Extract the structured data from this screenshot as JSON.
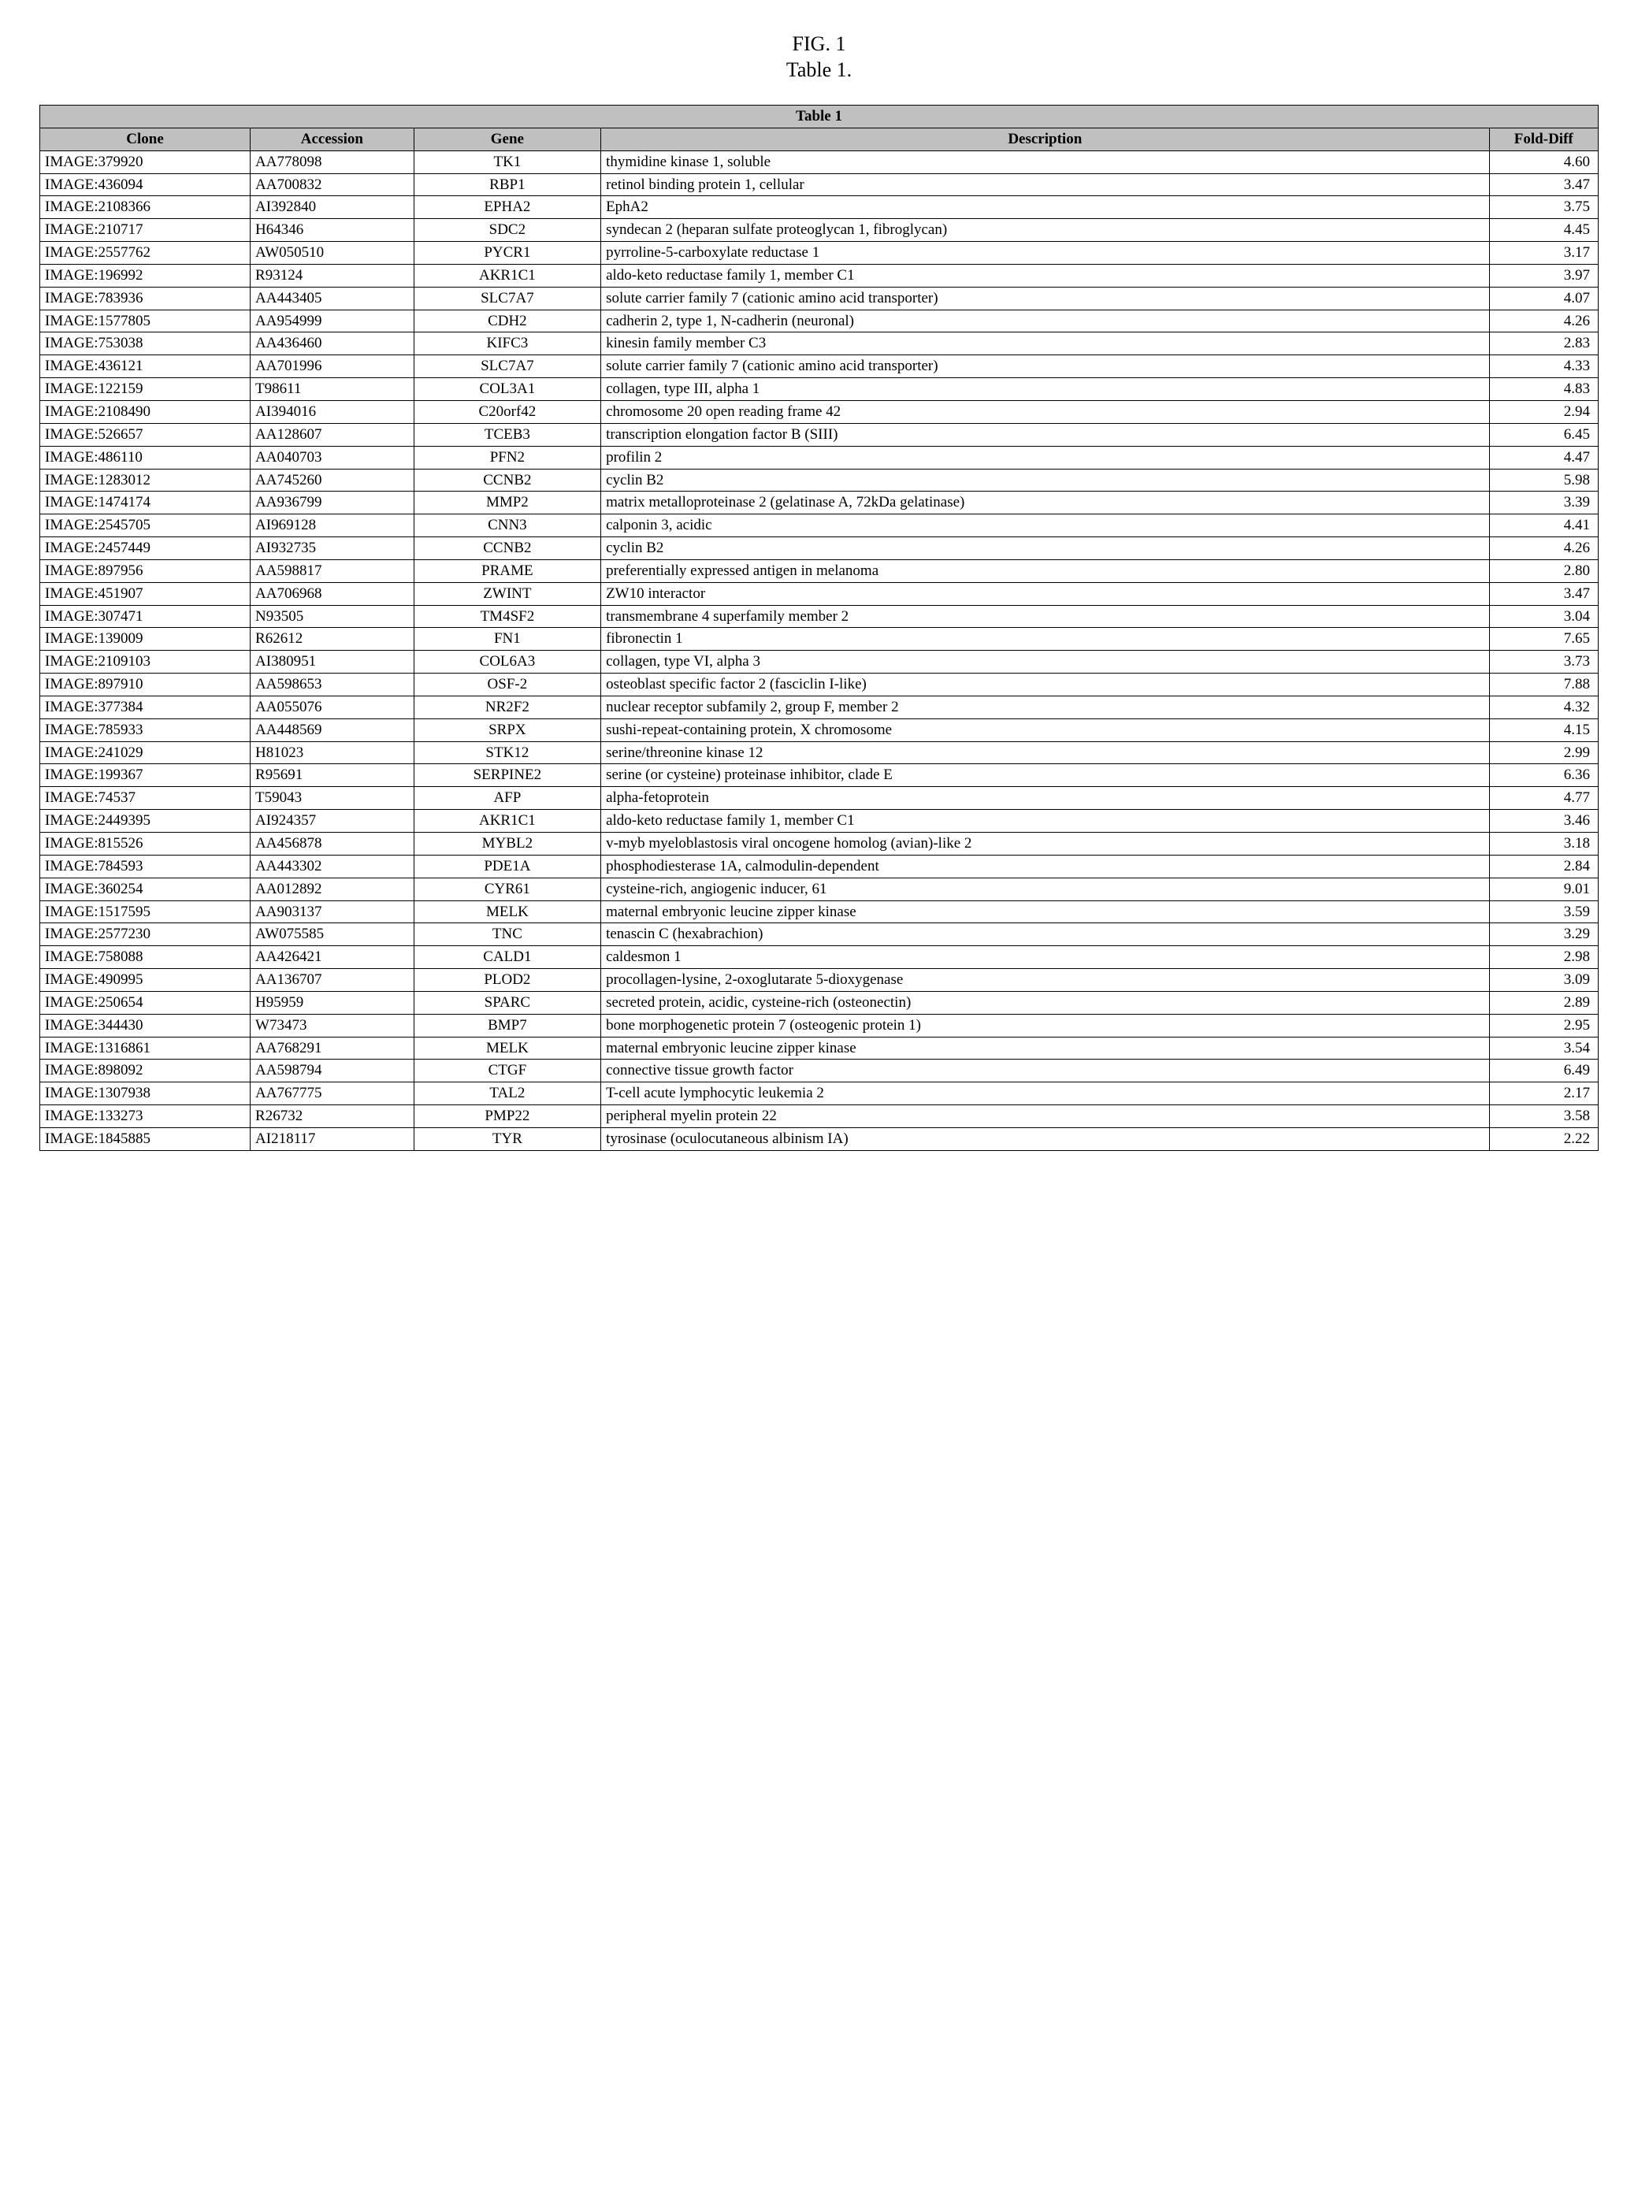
{
  "figure": {
    "label_line1": "FIG. 1",
    "label_line2": "Table 1."
  },
  "table": {
    "title": "Table 1",
    "columns": {
      "clone": "Clone",
      "accession": "Accession",
      "gene": "Gene",
      "description": "Description",
      "fold": "Fold-Diff"
    },
    "rows": [
      {
        "clone": "IMAGE:379920",
        "accession": "AA778098",
        "gene": "TK1",
        "description": "thymidine kinase 1, soluble",
        "fold": "4.60"
      },
      {
        "clone": "IMAGE:436094",
        "accession": "AA700832",
        "gene": "RBP1",
        "description": "retinol binding protein 1, cellular",
        "fold": "3.47"
      },
      {
        "clone": "IMAGE:2108366",
        "accession": "AI392840",
        "gene": "EPHA2",
        "description": "EphA2",
        "fold": "3.75"
      },
      {
        "clone": "IMAGE:210717",
        "accession": "H64346",
        "gene": "SDC2",
        "description": "syndecan 2 (heparan sulfate proteoglycan 1, fibroglycan)",
        "fold": "4.45"
      },
      {
        "clone": "IMAGE:2557762",
        "accession": "AW050510",
        "gene": "PYCR1",
        "description": "pyrroline-5-carboxylate reductase 1",
        "fold": "3.17"
      },
      {
        "clone": "IMAGE:196992",
        "accession": "R93124",
        "gene": "AKR1C1",
        "description": "aldo-keto reductase family 1, member C1",
        "fold": "3.97"
      },
      {
        "clone": "IMAGE:783936",
        "accession": "AA443405",
        "gene": "SLC7A7",
        "description": "solute carrier family 7 (cationic amino acid transporter)",
        "fold": "4.07"
      },
      {
        "clone": "IMAGE:1577805",
        "accession": "AA954999",
        "gene": "CDH2",
        "description": "cadherin 2, type 1, N-cadherin (neuronal)",
        "fold": "4.26"
      },
      {
        "clone": "IMAGE:753038",
        "accession": "AA436460",
        "gene": "KIFC3",
        "description": "kinesin family member C3",
        "fold": "2.83"
      },
      {
        "clone": "IMAGE:436121",
        "accession": "AA701996",
        "gene": "SLC7A7",
        "description": "solute carrier family 7 (cationic amino acid transporter)",
        "fold": "4.33"
      },
      {
        "clone": "IMAGE:122159",
        "accession": "T98611",
        "gene": "COL3A1",
        "description": "collagen, type III, alpha 1",
        "fold": "4.83"
      },
      {
        "clone": "IMAGE:2108490",
        "accession": "AI394016",
        "gene": "C20orf42",
        "description": "chromosome 20 open reading frame 42",
        "fold": "2.94"
      },
      {
        "clone": "IMAGE:526657",
        "accession": "AA128607",
        "gene": "TCEB3",
        "description": "transcription elongation factor B (SIII)",
        "fold": "6.45"
      },
      {
        "clone": "IMAGE:486110",
        "accession": "AA040703",
        "gene": "PFN2",
        "description": "profilin 2",
        "fold": "4.47"
      },
      {
        "clone": "IMAGE:1283012",
        "accession": "AA745260",
        "gene": "CCNB2",
        "description": "cyclin B2",
        "fold": "5.98"
      },
      {
        "clone": "IMAGE:1474174",
        "accession": "AA936799",
        "gene": "MMP2",
        "description": "matrix metalloproteinase 2 (gelatinase A, 72kDa gelatinase)",
        "fold": "3.39"
      },
      {
        "clone": "IMAGE:2545705",
        "accession": "AI969128",
        "gene": "CNN3",
        "description": "calponin 3, acidic",
        "fold": "4.41"
      },
      {
        "clone": "IMAGE:2457449",
        "accession": "AI932735",
        "gene": "CCNB2",
        "description": "cyclin B2",
        "fold": "4.26"
      },
      {
        "clone": "IMAGE:897956",
        "accession": "AA598817",
        "gene": "PRAME",
        "description": "preferentially expressed antigen in melanoma",
        "fold": "2.80"
      },
      {
        "clone": "IMAGE:451907",
        "accession": "AA706968",
        "gene": "ZWINT",
        "description": "ZW10 interactor",
        "fold": "3.47"
      },
      {
        "clone": "IMAGE:307471",
        "accession": "N93505",
        "gene": "TM4SF2",
        "description": "transmembrane 4 superfamily member 2",
        "fold": "3.04"
      },
      {
        "clone": "IMAGE:139009",
        "accession": "R62612",
        "gene": "FN1",
        "description": "fibronectin 1",
        "fold": "7.65"
      },
      {
        "clone": "IMAGE:2109103",
        "accession": "AI380951",
        "gene": "COL6A3",
        "description": "collagen, type VI, alpha 3",
        "fold": "3.73"
      },
      {
        "clone": "IMAGE:897910",
        "accession": "AA598653",
        "gene": "OSF-2",
        "description": "osteoblast specific factor 2 (fasciclin I-like)",
        "fold": "7.88"
      },
      {
        "clone": "IMAGE:377384",
        "accession": "AA055076",
        "gene": "NR2F2",
        "description": "nuclear receptor subfamily 2, group F, member 2",
        "fold": "4.32"
      },
      {
        "clone": "IMAGE:785933",
        "accession": "AA448569",
        "gene": "SRPX",
        "description": "sushi-repeat-containing protein, X chromosome",
        "fold": "4.15"
      },
      {
        "clone": "IMAGE:241029",
        "accession": "H81023",
        "gene": "STK12",
        "description": "serine/threonine kinase 12",
        "fold": "2.99"
      },
      {
        "clone": "IMAGE:199367",
        "accession": "R95691",
        "gene": "SERPINE2",
        "description": "serine (or cysteine) proteinase inhibitor, clade E",
        "fold": "6.36"
      },
      {
        "clone": "IMAGE:74537",
        "accession": "T59043",
        "gene": "AFP",
        "description": "alpha-fetoprotein",
        "fold": "4.77"
      },
      {
        "clone": "IMAGE:2449395",
        "accession": "AI924357",
        "gene": "AKR1C1",
        "description": "aldo-keto reductase family 1, member C1",
        "fold": "3.46"
      },
      {
        "clone": "IMAGE:815526",
        "accession": "AA456878",
        "gene": "MYBL2",
        "description": "v-myb myeloblastosis viral oncogene homolog (avian)-like 2",
        "fold": "3.18"
      },
      {
        "clone": "IMAGE:784593",
        "accession": "AA443302",
        "gene": "PDE1A",
        "description": "phosphodiesterase 1A, calmodulin-dependent",
        "fold": "2.84"
      },
      {
        "clone": "IMAGE:360254",
        "accession": "AA012892",
        "gene": "CYR61",
        "description": "cysteine-rich, angiogenic inducer, 61",
        "fold": "9.01"
      },
      {
        "clone": "IMAGE:1517595",
        "accession": "AA903137",
        "gene": "MELK",
        "description": "maternal embryonic leucine zipper kinase",
        "fold": "3.59"
      },
      {
        "clone": "IMAGE:2577230",
        "accession": "AW075585",
        "gene": "TNC",
        "description": "tenascin C (hexabrachion)",
        "fold": "3.29"
      },
      {
        "clone": "IMAGE:758088",
        "accession": "AA426421",
        "gene": "CALD1",
        "description": "caldesmon 1",
        "fold": "2.98"
      },
      {
        "clone": "IMAGE:490995",
        "accession": "AA136707",
        "gene": "PLOD2",
        "description": "procollagen-lysine, 2-oxoglutarate 5-dioxygenase",
        "fold": "3.09"
      },
      {
        "clone": "IMAGE:250654",
        "accession": "H95959",
        "gene": "SPARC",
        "description": "secreted protein, acidic, cysteine-rich (osteonectin)",
        "fold": "2.89"
      },
      {
        "clone": "IMAGE:344430",
        "accession": "W73473",
        "gene": "BMP7",
        "description": "bone morphogenetic protein 7 (osteogenic protein 1)",
        "fold": "2.95"
      },
      {
        "clone": "IMAGE:1316861",
        "accession": "AA768291",
        "gene": "MELK",
        "description": "maternal embryonic leucine zipper kinase",
        "fold": "3.54"
      },
      {
        "clone": "IMAGE:898092",
        "accession": "AA598794",
        "gene": "CTGF",
        "description": "connective tissue growth factor",
        "fold": "6.49"
      },
      {
        "clone": "IMAGE:1307938",
        "accession": "AA767775",
        "gene": "TAL2",
        "description": "T-cell acute lymphocytic leukemia 2",
        "fold": "2.17"
      },
      {
        "clone": "IMAGE:133273",
        "accession": "R26732",
        "gene": "PMP22",
        "description": "peripheral myelin protein 22",
        "fold": "3.58"
      },
      {
        "clone": "IMAGE:1845885",
        "accession": "AI218117",
        "gene": "TYR",
        "description": "tyrosinase (oculocutaneous albinism IA)",
        "fold": "2.22"
      }
    ]
  }
}
